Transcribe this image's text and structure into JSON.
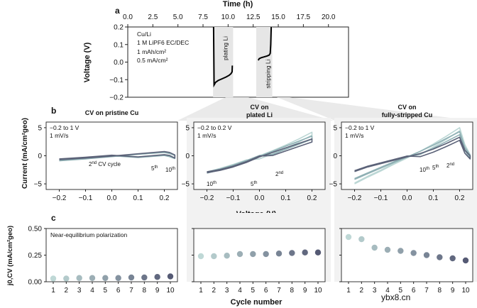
{
  "figure": {
    "panel_labels": {
      "a": "a",
      "b": "b",
      "c": "c"
    },
    "watermark": "ybx8.cn"
  },
  "chart_data": [
    {
      "id": "a",
      "type": "line",
      "title": "",
      "xlabel": "Time (h)",
      "ylabel": "Voltage (V)",
      "xlim": [
        0,
        22
      ],
      "ylim": [
        -0.2,
        0.2
      ],
      "xticks": [
        "0.0",
        "2.5",
        "5.0",
        "7.5",
        "10.0",
        "12.5",
        "15.0",
        "17.5",
        "20.0"
      ],
      "yticks": [
        "−0.2",
        "−0.1",
        "0.0",
        "0.1",
        "0.2"
      ],
      "annotations": [
        "Cu/Li",
        "1 M LiPF6 EC/DEC",
        "1 mAh/cm²",
        "0.5 mA/cm²"
      ],
      "regions": [
        {
          "label": "plating Li",
          "x": [
            8.5,
            10.5
          ]
        },
        {
          "label": "stripping Li",
          "x": [
            12.8,
            14.4
          ]
        }
      ],
      "series": [
        {
          "name": "plating",
          "x": [
            8.55,
            8.6,
            8.75,
            9.0,
            9.4,
            9.8,
            10.1,
            10.3,
            10.4,
            10.42
          ],
          "y": [
            0.2,
            -0.13,
            -0.115,
            -0.105,
            -0.095,
            -0.085,
            -0.075,
            -0.065,
            -0.055,
            -0.02
          ]
        },
        {
          "name": "stripping",
          "x": [
            13.0,
            13.1,
            13.3,
            13.6,
            13.9,
            14.1,
            14.2,
            14.25,
            14.3
          ],
          "y": [
            0.01,
            0.02,
            0.025,
            0.03,
            0.035,
            0.04,
            0.05,
            0.1,
            0.2
          ]
        }
      ]
    },
    {
      "id": "b",
      "type": "line",
      "subtitle": "b",
      "xlabel": "Voltage (V)",
      "ylabel": "Current (mA/cm²geo)",
      "xticks": [
        "−0.2",
        "−0.1",
        "0.0",
        "0.1",
        "0.2"
      ],
      "yticks": [
        "5",
        "0",
        "−5"
      ],
      "xlim": [
        -0.25,
        0.25
      ],
      "ylim": [
        -6,
        6
      ],
      "subplots": [
        {
          "title": "CV on pristine Cu",
          "notes": [
            "−0.2 to 1 V",
            "1 mV/s"
          ],
          "labels": [
            "2nd CV cycle",
            "5th",
            "10th"
          ],
          "series": [
            {
              "name": "2nd",
              "x": [
                -0.2,
                -0.1,
                0,
                0.1,
                0.2,
                0.22,
                0.24
              ],
              "y": [
                -0.8,
                -0.5,
                -0.1,
                0.3,
                0.7,
                0.5,
                0.1
              ]
            },
            {
              "name": "5th",
              "x": [
                -0.2,
                -0.1,
                0,
                0.1,
                0.2,
                0.22,
                0.24
              ],
              "y": [
                -0.9,
                -0.55,
                -0.15,
                0.25,
                0.6,
                0.4,
                0.05
              ]
            },
            {
              "name": "10th",
              "x": [
                -0.2,
                -0.1,
                0,
                0.1,
                0.2,
                0.22,
                0.24
              ],
              "y": [
                -0.7,
                -0.4,
                -0.05,
                0.35,
                0.75,
                0.6,
                0.15
              ]
            }
          ]
        },
        {
          "title": "CV on plated Li",
          "notes": [
            "−0.2 to 0.2 V",
            "1 mV/s"
          ],
          "labels": [
            "10th",
            "5th",
            "2nd"
          ],
          "series": [
            {
              "name": "2nd",
              "x": [
                -0.2,
                -0.15,
                -0.1,
                -0.05,
                0,
                0.05,
                0.1,
                0.15,
                0.2
              ],
              "y": [
                -3.0,
                -2.4,
                -1.7,
                -0.9,
                0.0,
                0.9,
                1.9,
                3.0,
                4.2
              ]
            },
            {
              "name": "5th",
              "x": [
                -0.2,
                -0.15,
                -0.1,
                -0.05,
                0,
                0.05,
                0.1,
                0.15,
                0.2
              ],
              "y": [
                -3.1,
                -2.5,
                -1.8,
                -1.0,
                -0.1,
                0.8,
                1.7,
                2.6,
                3.5
              ]
            },
            {
              "name": "10th",
              "x": [
                -0.2,
                -0.15,
                -0.1,
                -0.05,
                0,
                0.05,
                0.1,
                0.15,
                0.2
              ],
              "y": [
                -3.0,
                -2.6,
                -2.0,
                -1.2,
                -0.2,
                0.6,
                1.4,
                2.2,
                3.0
              ]
            }
          ]
        },
        {
          "title": "CV on fully-stripped Cu",
          "notes": [
            "−0.2 to 1 V",
            "1 mV/s"
          ],
          "labels": [
            "10th",
            "5th",
            "2nd"
          ],
          "series": [
            {
              "name": "2nd",
              "x": [
                -0.2,
                -0.15,
                -0.1,
                -0.05,
                0,
                0.05,
                0.1,
                0.15,
                0.2,
                0.22,
                0.24
              ],
              "y": [
                -5.0,
                -3.8,
                -2.7,
                -1.5,
                -0.4,
                0.8,
                2.1,
                3.5,
                5.0,
                2.0,
                0.2
              ]
            },
            {
              "name": "5th",
              "x": [
                -0.2,
                -0.15,
                -0.1,
                -0.05,
                0,
                0.05,
                0.1,
                0.15,
                0.2,
                0.22,
                0.24
              ],
              "y": [
                -4.2,
                -3.2,
                -2.2,
                -1.2,
                -0.2,
                0.8,
                1.9,
                3.1,
                4.3,
                1.5,
                0.1
              ]
            },
            {
              "name": "10th",
              "x": [
                -0.2,
                -0.15,
                -0.1,
                -0.05,
                0,
                0.05,
                0.1,
                0.15,
                0.2,
                0.22,
                0.24
              ],
              "y": [
                -2.8,
                -2.0,
                -1.4,
                -0.8,
                -0.2,
                0.4,
                1.2,
                2.2,
                3.3,
                1.0,
                0.0
              ]
            }
          ]
        }
      ]
    },
    {
      "id": "c",
      "type": "scatter",
      "xlabel": "Cycle number",
      "ylabel": "j0,CV (mA/cm²geo)",
      "ylim": [
        0,
        0.5
      ],
      "yticks": [
        "0.00",
        "0.25",
        "0.50"
      ],
      "categories": [
        1,
        2,
        3,
        4,
        5,
        6,
        7,
        8,
        9,
        10
      ],
      "subplots": [
        {
          "title": "Near-equilibrium polarization",
          "values": [
            0.03,
            0.03,
            0.035,
            0.035,
            0.035,
            0.035,
            0.04,
            0.04,
            0.045,
            0.05
          ]
        },
        {
          "title": "",
          "values": [
            0.24,
            0.24,
            0.245,
            0.26,
            0.26,
            0.26,
            0.265,
            0.27,
            0.275,
            0.275
          ]
        },
        {
          "title": "",
          "values": [
            0.42,
            0.4,
            0.32,
            0.3,
            0.29,
            0.27,
            0.25,
            0.23,
            0.22,
            0.2
          ]
        }
      ]
    }
  ],
  "colors": {
    "axis": "#222222",
    "shade": "#e6e6e6",
    "band": "#cfcfcf",
    "plate_line": "#000000",
    "cv_2nd": "#bcd7d5",
    "cv_5th": "#8fb0b4",
    "cv_10th": "#5b6278",
    "dot_start": "#bfd8d6",
    "dot_end": "#555a74"
  }
}
